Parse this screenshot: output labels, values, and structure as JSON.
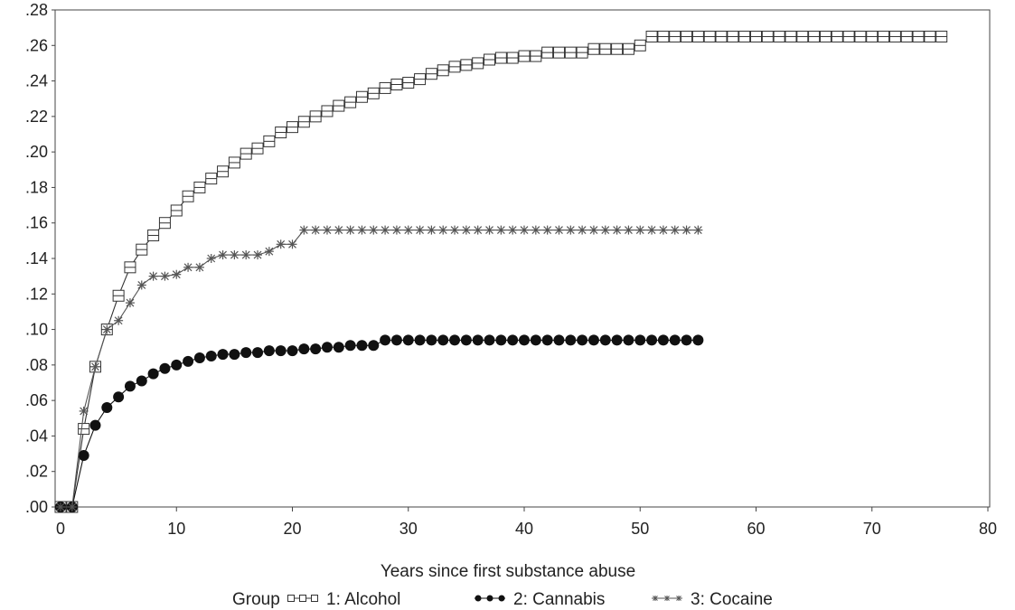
{
  "chart_data": {
    "type": "line",
    "xlabel": "Years since first substance abuse",
    "ylabel": "",
    "xlim": [
      0,
      80
    ],
    "ylim": [
      0,
      0.28
    ],
    "x_ticks": [
      0,
      10,
      20,
      30,
      40,
      50,
      60,
      70,
      80
    ],
    "x_tick_labels": [
      "0",
      "10",
      "20",
      "30",
      "40",
      "50",
      "60",
      "70",
      "80"
    ],
    "y_ticks": [
      0,
      0.02,
      0.04,
      0.06,
      0.08,
      0.1,
      0.12,
      0.14,
      0.16,
      0.18,
      0.2,
      0.22,
      0.24,
      0.26,
      0.28
    ],
    "y_tick_labels": [
      ".00",
      ".02",
      ".04",
      ".06",
      ".08",
      ".10",
      ".12",
      ".14",
      ".16",
      ".18",
      ".20",
      ".22",
      ".24",
      ".26",
      ".28"
    ],
    "grid": false,
    "legend": {
      "title": "Group",
      "placement": "bottom"
    },
    "series": [
      {
        "name": "1: Alcohol",
        "marker": "square",
        "x": [
          0,
          1,
          2,
          3,
          4,
          5,
          6,
          7,
          8,
          9,
          10,
          11,
          12,
          13,
          14,
          15,
          16,
          17,
          18,
          19,
          20,
          21,
          22,
          23,
          24,
          25,
          26,
          27,
          28,
          29,
          30,
          31,
          32,
          33,
          34,
          35,
          36,
          37,
          38,
          39,
          40,
          41,
          42,
          43,
          44,
          45,
          46,
          47,
          48,
          49,
          50,
          51,
          52,
          53,
          54,
          55,
          56,
          57,
          58,
          59,
          60,
          61,
          62,
          63,
          64,
          65,
          66,
          67,
          68,
          69,
          70,
          71,
          72,
          73,
          74,
          75,
          76
        ],
        "values": [
          0,
          0,
          0.044,
          0.079,
          0.1,
          0.119,
          0.135,
          0.145,
          0.153,
          0.16,
          0.167,
          0.175,
          0.18,
          0.185,
          0.189,
          0.194,
          0.199,
          0.202,
          0.206,
          0.211,
          0.214,
          0.217,
          0.22,
          0.223,
          0.226,
          0.228,
          0.231,
          0.233,
          0.236,
          0.238,
          0.239,
          0.241,
          0.244,
          0.246,
          0.248,
          0.249,
          0.25,
          0.252,
          0.253,
          0.253,
          0.254,
          0.254,
          0.256,
          0.256,
          0.256,
          0.256,
          0.258,
          0.258,
          0.258,
          0.258,
          0.26,
          0.265,
          0.265,
          0.265,
          0.265,
          0.265,
          0.265,
          0.265,
          0.265,
          0.265,
          0.265,
          0.265,
          0.265,
          0.265,
          0.265,
          0.265,
          0.265,
          0.265,
          0.265,
          0.265,
          0.265,
          0.265,
          0.265,
          0.265,
          0.265,
          0.265,
          0.265
        ]
      },
      {
        "name": "2: Cannabis",
        "marker": "circle",
        "x": [
          0,
          1,
          2,
          3,
          4,
          5,
          6,
          7,
          8,
          9,
          10,
          11,
          12,
          13,
          14,
          15,
          16,
          17,
          18,
          19,
          20,
          21,
          22,
          23,
          24,
          25,
          26,
          27,
          28,
          29,
          30,
          31,
          32,
          33,
          34,
          35,
          36,
          37,
          38,
          39,
          40,
          41,
          42,
          43,
          44,
          45,
          46,
          47,
          48,
          49,
          50,
          51,
          52,
          53,
          54,
          55
        ],
        "values": [
          0,
          0,
          0.029,
          0.046,
          0.056,
          0.062,
          0.068,
          0.071,
          0.075,
          0.078,
          0.08,
          0.082,
          0.084,
          0.085,
          0.086,
          0.086,
          0.087,
          0.087,
          0.088,
          0.088,
          0.088,
          0.089,
          0.089,
          0.09,
          0.09,
          0.091,
          0.091,
          0.091,
          0.094,
          0.094,
          0.094,
          0.094,
          0.094,
          0.094,
          0.094,
          0.094,
          0.094,
          0.094,
          0.094,
          0.094,
          0.094,
          0.094,
          0.094,
          0.094,
          0.094,
          0.094,
          0.094,
          0.094,
          0.094,
          0.094,
          0.094,
          0.094,
          0.094,
          0.094,
          0.094,
          0.094
        ]
      },
      {
        "name": "3: Cocaine",
        "marker": "asterisk",
        "x": [
          0,
          1,
          2,
          3,
          4,
          5,
          6,
          7,
          8,
          9,
          10,
          11,
          12,
          13,
          14,
          15,
          16,
          17,
          18,
          19,
          20,
          21,
          22,
          23,
          24,
          25,
          26,
          27,
          28,
          29,
          30,
          31,
          32,
          33,
          34,
          35,
          36,
          37,
          38,
          39,
          40,
          41,
          42,
          43,
          44,
          45,
          46,
          47,
          48,
          49,
          50,
          51,
          52,
          53,
          54,
          55
        ],
        "values": [
          0,
          0,
          0.054,
          0.079,
          0.1,
          0.105,
          0.115,
          0.125,
          0.13,
          0.13,
          0.131,
          0.135,
          0.135,
          0.14,
          0.142,
          0.142,
          0.142,
          0.142,
          0.144,
          0.148,
          0.148,
          0.156,
          0.156,
          0.156,
          0.156,
          0.156,
          0.156,
          0.156,
          0.156,
          0.156,
          0.156,
          0.156,
          0.156,
          0.156,
          0.156,
          0.156,
          0.156,
          0.156,
          0.156,
          0.156,
          0.156,
          0.156,
          0.156,
          0.156,
          0.156,
          0.156,
          0.156,
          0.156,
          0.156,
          0.156,
          0.156,
          0.156,
          0.156,
          0.156,
          0.156,
          0.156
        ]
      }
    ],
    "colors": {
      "axis": "#444444",
      "alcohol": "#333333",
      "cannabis": "#111111",
      "cocaine": "#555555"
    }
  }
}
